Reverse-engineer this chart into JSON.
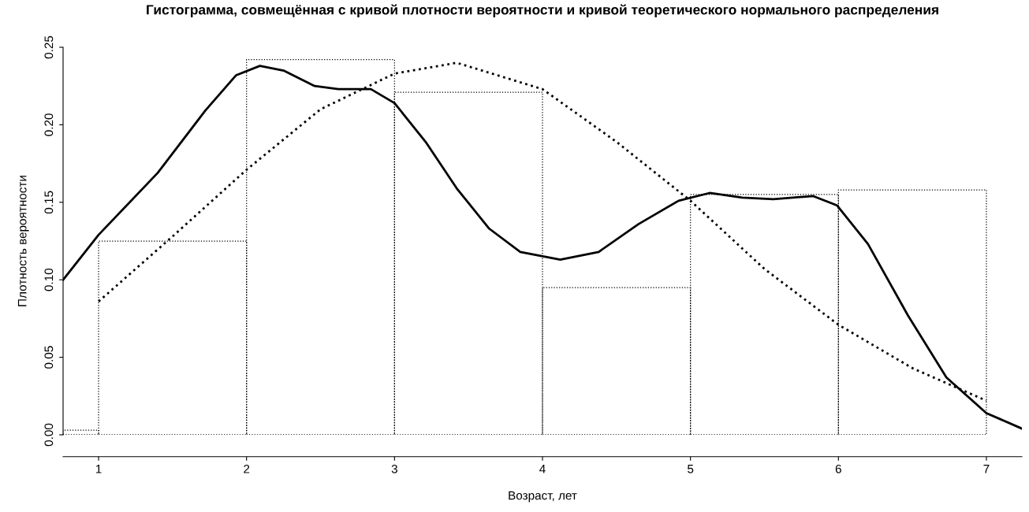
{
  "chart_data": {
    "type": "histogram",
    "title": "Гистограмма, совмещённая с кривой плотности вероятности и кривой теоретического нормального распределения",
    "xlabel": "Возраст, лет",
    "ylabel": "Плотность вероятности",
    "bins": [
      0.76,
      1,
      2,
      3,
      4,
      5,
      6,
      7
    ],
    "values": [
      0.003,
      0.125,
      0.242,
      0.221,
      0.095,
      0.155,
      0.158
    ],
    "line_style": "dotted",
    "color": "#000000",
    "xlim": [
      0.76,
      7.24
    ],
    "xticks": [
      1,
      2,
      3,
      4,
      5,
      6,
      7
    ],
    "ylim": [
      0,
      0.25
    ],
    "yticks": [
      {
        "value": 0,
        "label": "0.00"
      },
      {
        "value": 0.05,
        "label": "0.05"
      },
      {
        "value": 0.1,
        "label": "0.10"
      },
      {
        "value": 0.15,
        "label": "0.15"
      },
      {
        "value": 0.2,
        "label": "0.20"
      },
      {
        "value": 0.25,
        "label": "0.25"
      }
    ],
    "grid": false,
    "legend": false,
    "series": [
      {
        "type": "line",
        "line_style": "solid",
        "color": "#000000",
        "x": [
          0.76,
          1.0,
          1.4,
          1.72,
          1.93,
          2.09,
          2.25,
          2.46,
          2.62,
          2.84,
          3.0,
          3.21,
          3.42,
          3.64,
          3.85,
          4.12,
          4.38,
          4.65,
          4.92,
          5.13,
          5.35,
          5.56,
          5.83,
          5.99,
          6.2,
          6.47,
          6.73,
          7.0,
          7.24
        ],
        "values": [
          0.1,
          0.129,
          0.169,
          0.209,
          0.232,
          0.238,
          0.235,
          0.225,
          0.223,
          0.223,
          0.214,
          0.189,
          0.159,
          0.133,
          0.118,
          0.113,
          0.118,
          0.136,
          0.151,
          0.156,
          0.153,
          0.152,
          0.154,
          0.148,
          0.123,
          0.077,
          0.037,
          0.014,
          0.004
        ]
      },
      {
        "type": "line",
        "line_style": "dotted",
        "color": "#000000",
        "x": [
          1.0,
          1.5,
          2.0,
          2.5,
          3.0,
          3.42,
          4.0,
          4.5,
          5.0,
          5.5,
          6.0,
          6.5,
          7.0
        ],
        "values": [
          0.086,
          0.128,
          0.171,
          0.21,
          0.233,
          0.24,
          0.223,
          0.189,
          0.151,
          0.107,
          0.071,
          0.043,
          0.022
        ]
      }
    ]
  }
}
